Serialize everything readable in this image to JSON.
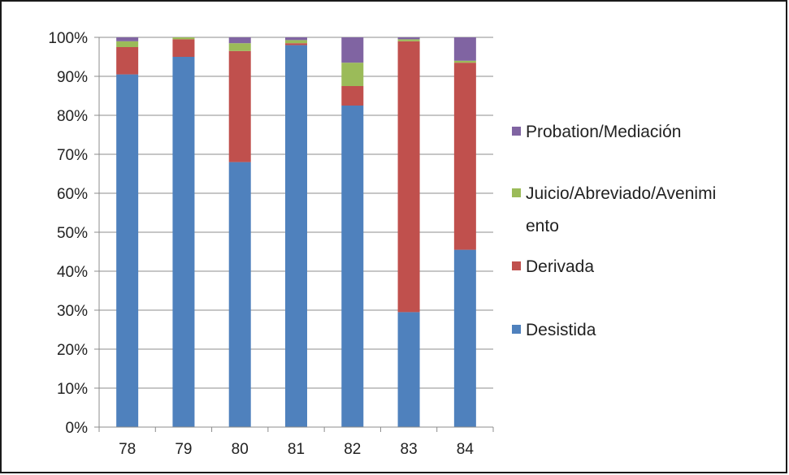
{
  "chart_data": {
    "type": "bar",
    "stacked": true,
    "percent": true,
    "categories": [
      "78",
      "79",
      "80",
      "81",
      "82",
      "83",
      "84"
    ],
    "series": [
      {
        "name": "Desistida",
        "color": "#4F81BD",
        "values": [
          90.5,
          95,
          68,
          98,
          82.5,
          29.5,
          45.5
        ]
      },
      {
        "name": "Derivada",
        "color": "#C0504D",
        "values": [
          7,
          4.5,
          28.5,
          0.5,
          5,
          69.5,
          48
        ]
      },
      {
        "name": "Juicio/Abreviado/Avenimiento",
        "color": "#9BBB59",
        "values": [
          1.5,
          0.5,
          2,
          0.8,
          6,
          0.5,
          0.5
        ]
      },
      {
        "name": "Probation/Mediación",
        "color": "#8064A2",
        "values": [
          1,
          0,
          1.5,
          0.7,
          6.5,
          0.5,
          6
        ]
      }
    ],
    "yticks": [
      "0%",
      "10%",
      "20%",
      "30%",
      "40%",
      "50%",
      "60%",
      "70%",
      "80%",
      "90%",
      "100%"
    ],
    "ylim": [
      0,
      100
    ],
    "legend": {
      "position": "right",
      "entries": [
        {
          "lines": [
            "Probation/Mediación"
          ],
          "color": "#8064A2"
        },
        {
          "lines": [
            "Juicio/Abreviado/Avenimi",
            "ento"
          ],
          "color": "#9BBB59"
        },
        {
          "lines": [
            "Derivada"
          ],
          "color": "#C0504D"
        },
        {
          "lines": [
            "Desistida"
          ],
          "color": "#4F81BD"
        }
      ]
    },
    "title": "",
    "xlabel": "",
    "ylabel": "",
    "grid": true
  }
}
